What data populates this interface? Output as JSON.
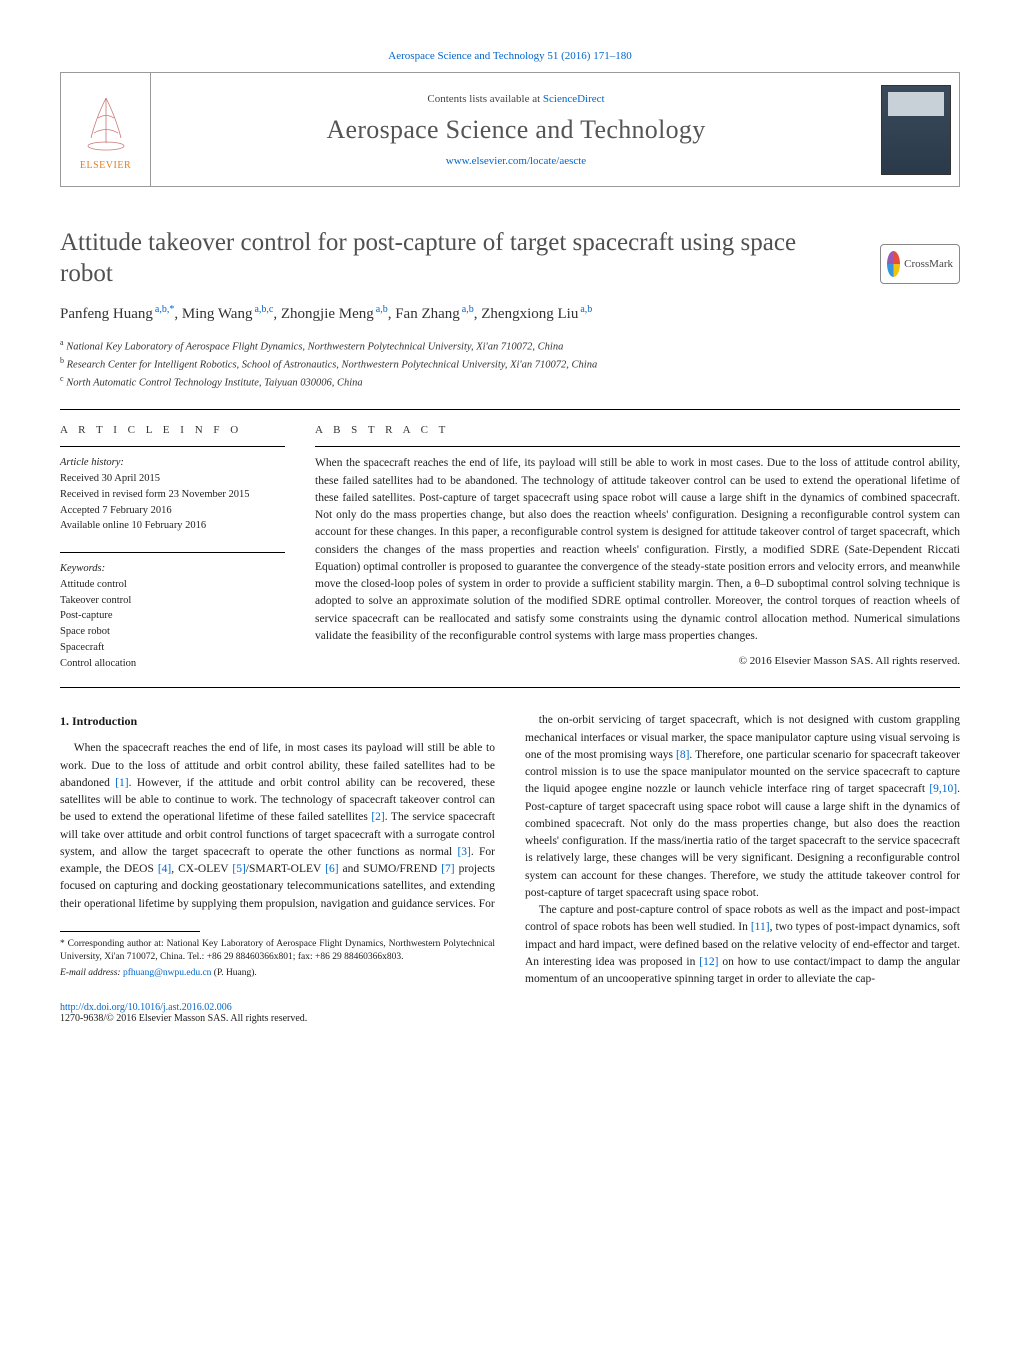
{
  "colors": {
    "link": "#0066cc",
    "text": "#1a1a1a",
    "heading_gray": "#505050",
    "rule": "#000000"
  },
  "typography": {
    "body_fontsize_pt": 9,
    "title_fontsize_pt": 19,
    "journal_title_pt": 20,
    "font_family": "Georgia/Times"
  },
  "journal_ref_line": "Aerospace Science and Technology 51 (2016) 171–180",
  "header": {
    "contents_line_prefix": "Contents lists available at ",
    "contents_line_link": "ScienceDirect",
    "journal_title": "Aerospace Science and Technology",
    "journal_url": "www.elsevier.com/locate/aescte",
    "publisher_logo_label": "ELSEVIER"
  },
  "crossmark_label": "CrossMark",
  "article": {
    "title": "Attitude takeover control for post-capture of target spacecraft using space robot",
    "authors_html": [
      "Panfeng Huang",
      "Ming Wang",
      "Zhongjie Meng",
      "Fan Zhang",
      "Zhengxiong Liu"
    ],
    "author_sups": [
      "a,b,*",
      "a,b,c",
      "a,b",
      "a,b",
      "a,b"
    ],
    "affiliations": [
      {
        "sup": "a",
        "text": "National Key Laboratory of Aerospace Flight Dynamics, Northwestern Polytechnical University, Xi'an 710072, China"
      },
      {
        "sup": "b",
        "text": "Research Center for Intelligent Robotics, School of Astronautics, Northwestern Polytechnical University, Xi'an 710072, China"
      },
      {
        "sup": "c",
        "text": "North Automatic Control Technology Institute, Taiyuan 030006, China"
      }
    ]
  },
  "article_info": {
    "heading": "a r t i c l e   i n f o",
    "history_label": "Article history:",
    "history": [
      "Received 30 April 2015",
      "Received in revised form 23 November 2015",
      "Accepted 7 February 2016",
      "Available online 10 February 2016"
    ],
    "keywords_label": "Keywords:",
    "keywords": [
      "Attitude control",
      "Takeover control",
      "Post-capture",
      "Space robot",
      "Spacecraft",
      "Control allocation"
    ]
  },
  "abstract": {
    "heading": "a b s t r a c t",
    "text": "When the spacecraft reaches the end of life, its payload will still be able to work in most cases. Due to the loss of attitude control ability, these failed satellites had to be abandoned. The technology of attitude takeover control can be used to extend the operational lifetime of these failed satellites. Post-capture of target spacecraft using space robot will cause a large shift in the dynamics of combined spacecraft. Not only do the mass properties change, but also does the reaction wheels' configuration. Designing a reconfigurable control system can account for these changes. In this paper, a reconfigurable control system is designed for attitude takeover control of target spacecraft, which considers the changes of the mass properties and reaction wheels' configuration. Firstly, a modified SDRE (Sate-Dependent Riccati Equation) optimal controller is proposed to guarantee the convergence of the steady-state position errors and velocity errors, and meanwhile move the closed-loop poles of system in order to provide a sufficient stability margin. Then, a θ–D suboptimal control solving technique is adopted to solve an approximate solution of the modified SDRE optimal controller. Moreover, the control torques of reaction wheels of service spacecraft can be reallocated and satisfy some constraints using the dynamic control allocation method. Numerical simulations validate the feasibility of the reconfigurable control systems with large mass properties changes.",
    "copyright": "© 2016 Elsevier Masson SAS. All rights reserved."
  },
  "section1": {
    "heading": "1. Introduction",
    "col1_p1": "When the spacecraft reaches the end of life, in most cases its payload will still be able to work. Due to the loss of attitude and orbit control ability, these failed satellites had to be abandoned [1]. However, if the attitude and orbit control ability can be recovered, these satellites will be able to continue to work. The technology of spacecraft takeover control can be used to extend the operational lifetime of these failed satellites [2]. The service spacecraft will take over attitude and orbit control functions of target spacecraft with a surrogate control system, and allow the target spacecraft to operate the other functions as normal [3]. For example, the DEOS [4], CX-OLEV [5]/SMART-OLEV [6] and SUMO/FREND [7] projects focused on capturing and docking geostationary telecommunications satellites, and extending their operational lifetime by supplying them propulsion, navigation and guidance services. For",
    "col2_p1": "the on-orbit servicing of target spacecraft, which is not designed with custom grappling mechanical interfaces or visual marker, the space manipulator capture using visual servoing is one of the most promising ways [8]. Therefore, one particular scenario for spacecraft takeover control mission is to use the space manipulator mounted on the service spacecraft to capture the liquid apogee engine nozzle or launch vehicle interface ring of target spacecraft [9,10]. Post-capture of target spacecraft using space robot will cause a large shift in the dynamics of combined spacecraft. Not only do the mass properties change, but also does the reaction wheels' configuration. If the mass/inertia ratio of the target spacecraft to the service spacecraft is relatively large, these changes will be very significant. Designing a reconfigurable control system can account for these changes. Therefore, we study the attitude takeover control for post-capture of target spacecraft using space robot.",
    "col2_p2": "The capture and post-capture control of space robots as well as the impact and post-impact control of space robots has been well studied. In [11], two types of post-impact dynamics, soft impact and hard impact, were defined based on the relative velocity of end-effector and target. An interesting idea was proposed in [12] on how to use contact/impact to damp the angular momentum of an uncooperative spinning target in order to alleviate the cap-"
  },
  "footnotes": {
    "corresponding": "* Corresponding author at: National Key Laboratory of Aerospace Flight Dynamics, Northwestern Polytechnical University, Xi'an 710072, China. Tel.: +86 29 88460366x801; fax: +86 29 88460366x803.",
    "email_label": "E-mail address:",
    "email": "pfhuang@nwpu.edu.cn",
    "email_person": "(P. Huang)."
  },
  "footer": {
    "doi": "http://dx.doi.org/10.1016/j.ast.2016.02.006",
    "issn_line": "1270-9638/© 2016 Elsevier Masson SAS. All rights reserved."
  }
}
